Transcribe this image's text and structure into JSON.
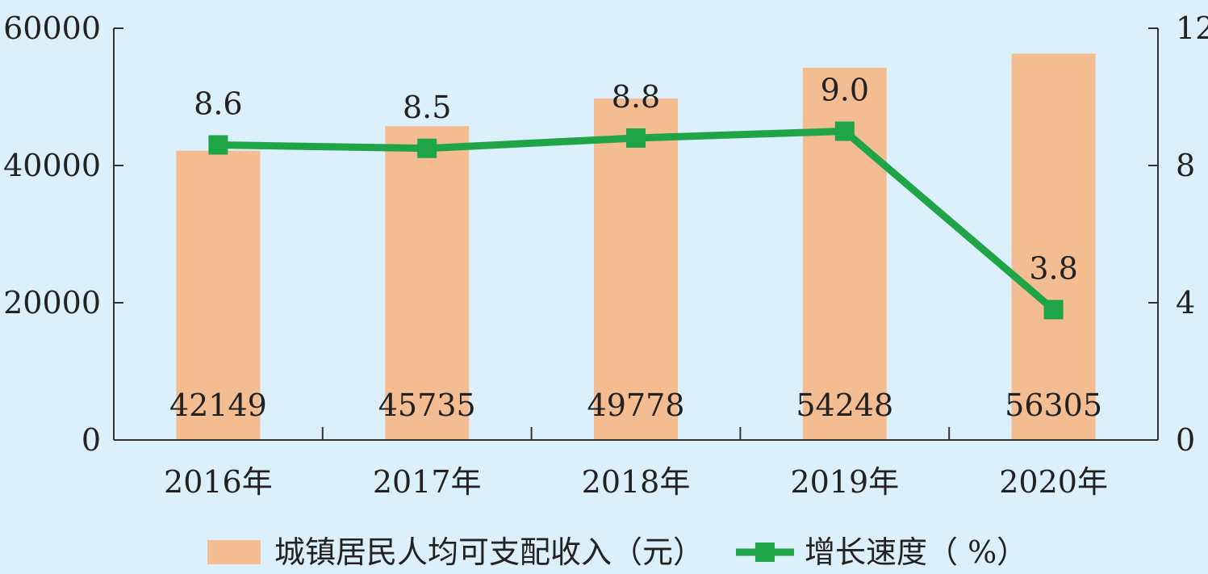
{
  "chart_data": {
    "type": "bar+line",
    "categories": [
      "2016年",
      "2017年",
      "2018年",
      "2019年",
      "2020年"
    ],
    "series": [
      {
        "name": "城镇居民人均可支配收入（元）",
        "type": "bar",
        "axis": "left",
        "values": [
          42149,
          45735,
          49778,
          54248,
          56305
        ],
        "color": "#f4bc91"
      },
      {
        "name": "增长速度（ %）",
        "type": "line",
        "axis": "right",
        "values": [
          8.6,
          8.5,
          8.8,
          9.0,
          3.8
        ],
        "color": "#1fa447"
      }
    ],
    "y_left": {
      "ticks": [
        0,
        20000,
        40000,
        60000
      ],
      "ylim": [
        0,
        60000
      ]
    },
    "y_right": {
      "ticks": [
        0,
        4,
        8,
        12
      ],
      "ylim": [
        0,
        12
      ]
    },
    "legend_position": "bottom",
    "grid": false
  }
}
